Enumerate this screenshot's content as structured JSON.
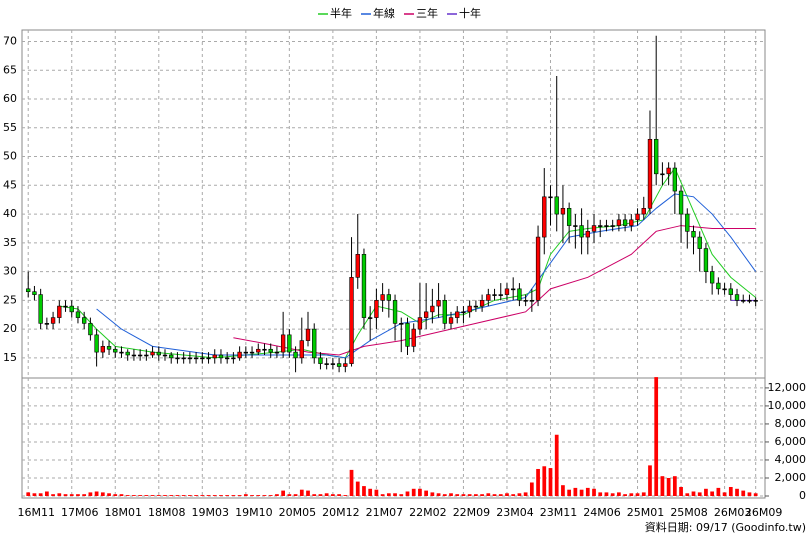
{
  "chart_data": {
    "type": "candlestick",
    "legend": [
      "半年",
      "年線",
      "三年",
      "十年"
    ],
    "footer": "資料日期: 09/17 (Goodinfo.tw)",
    "xlim": [
      -1,
      118.5
    ],
    "xticks": [
      {
        "value": 0,
        "label": "16M11"
      },
      {
        "value": 7,
        "label": "17M06"
      },
      {
        "value": 14,
        "label": "18M01"
      },
      {
        "value": 21,
        "label": "18M08"
      },
      {
        "value": 28,
        "label": "19M03"
      },
      {
        "value": 35,
        "label": "19M10"
      },
      {
        "value": 42,
        "label": "20M05"
      },
      {
        "value": 49,
        "label": "20M12"
      },
      {
        "value": 56,
        "label": "21M07"
      },
      {
        "value": 63,
        "label": "22M02"
      },
      {
        "value": 70,
        "label": "22M09"
      },
      {
        "value": 77,
        "label": "23M04"
      },
      {
        "value": 84,
        "label": "23M11"
      },
      {
        "value": 91,
        "label": "24M06"
      },
      {
        "value": 98,
        "label": "25M01"
      },
      {
        "value": 105,
        "label": "25M08"
      },
      {
        "value": 112,
        "label": "26M03"
      },
      {
        "value": 117,
        "label": "26M09"
      }
    ],
    "ylim": [
      11.5,
      72
    ],
    "yticks": [
      15,
      20,
      25,
      30,
      35,
      40,
      45,
      50,
      55,
      60,
      65,
      70
    ],
    "y2lim": [
      0,
      13100
    ],
    "y2ticks": [
      0,
      {
        "value": 2000,
        "label": "2,000"
      },
      {
        "value": 4000,
        "label": "4,000"
      },
      {
        "value": 6000,
        "label": "6,000"
      },
      {
        "value": 8000,
        "label": "8,000"
      },
      {
        "value": 10000,
        "label": "10,000"
      },
      {
        "value": 12000,
        "label": "12,000"
      }
    ],
    "up_color": "#ff0000",
    "down_color": "#00cc00",
    "volume_color": "#ff0000",
    "grid": true,
    "open": [
      27,
      26.5,
      26,
      21,
      21,
      22,
      24,
      24,
      23,
      22,
      21,
      19,
      16,
      17,
      16.5,
      16,
      16,
      15.5,
      15.5,
      15.5,
      15.5,
      16,
      15.5,
      15.5,
      15,
      15,
      15,
      15,
      15,
      15,
      15,
      15.5,
      15,
      15,
      15,
      16,
      16,
      16,
      16.5,
      16.5,
      16,
      16,
      19,
      16,
      15,
      18,
      20,
      15,
      14,
      14,
      14,
      13.5,
      14,
      29,
      33,
      22,
      22,
      25,
      26,
      25,
      21,
      21,
      17,
      20,
      22,
      23,
      24,
      25,
      21,
      22,
      23,
      23,
      24,
      24,
      25,
      26,
      26,
      26,
      27,
      27,
      25,
      25,
      25,
      36,
      43,
      43,
      40,
      41,
      38,
      38,
      36,
      37,
      38,
      38,
      38,
      38,
      39,
      38,
      39,
      40,
      41,
      53,
      47,
      47,
      48,
      44,
      40,
      37,
      36,
      34,
      30,
      28,
      27,
      27,
      26,
      25,
      25,
      25
    ],
    "high": [
      30,
      27.5,
      27,
      22,
      23,
      25,
      25,
      25,
      24,
      23,
      22,
      20,
      18,
      18,
      17,
      17,
      16.5,
      16.5,
      16.5,
      16.5,
      17,
      17,
      16.5,
      16,
      16,
      16,
      16,
      16,
      16,
      16,
      16.5,
      16.5,
      16,
      16,
      17,
      17,
      17,
      17.5,
      17.5,
      17.5,
      17,
      23,
      20,
      17,
      22,
      23,
      21,
      16,
      15,
      15,
      15,
      15,
      36,
      40,
      34,
      24,
      27,
      28,
      27,
      26,
      22,
      22,
      21,
      28,
      28,
      27,
      28,
      26,
      23,
      24,
      24,
      25,
      25,
      26,
      27,
      27,
      28,
      28,
      29,
      28,
      26,
      27,
      38,
      48,
      45,
      64,
      45,
      42,
      40,
      41,
      39,
      40,
      39,
      39,
      39,
      40,
      40,
      40,
      41,
      43,
      58,
      71,
      49,
      49,
      49,
      45,
      41,
      38,
      37,
      35,
      31,
      29,
      28,
      28,
      27,
      26,
      26,
      25.5
    ],
    "low": [
      25.5,
      25,
      20,
      20,
      20,
      21,
      23,
      22,
      21,
      20,
      18,
      13.5,
      15,
      15.5,
      15,
      15,
      14.5,
      14.5,
      14.5,
      14.5,
      15,
      14.5,
      14.5,
      14,
      14,
      14,
      14,
      14,
      14,
      14,
      14,
      14,
      14,
      14,
      14.5,
      15,
      15,
      15.5,
      15.5,
      15,
      15,
      15,
      15,
      12.5,
      14,
      17,
      14,
      13,
      13,
      13,
      12.5,
      12.5,
      13.5,
      27,
      20,
      18,
      20,
      23,
      22,
      18,
      16,
      15.5,
      16,
      19,
      20,
      21,
      22,
      20,
      20,
      21,
      21,
      22,
      23,
      23,
      24,
      25,
      25,
      25,
      25,
      24,
      24,
      23,
      24,
      33,
      38,
      37,
      35,
      35,
      34,
      33,
      33,
      35,
      36,
      37,
      37,
      37,
      37,
      37,
      38,
      39,
      40,
      45,
      45,
      45,
      40,
      35,
      34,
      33,
      30,
      28,
      26,
      26,
      26,
      25,
      24,
      24.5,
      24.5,
      24
    ],
    "close": [
      26.5,
      26,
      21,
      21,
      22,
      24,
      24,
      23,
      22,
      21,
      19,
      16,
      17,
      16.5,
      16,
      16,
      15.5,
      15.5,
      15.5,
      15.5,
      16,
      15.5,
      15.5,
      15,
      15,
      15,
      15,
      15,
      15,
      15,
      15.5,
      15,
      15,
      15,
      16,
      16,
      16,
      16.5,
      16.5,
      16,
      16,
      19,
      16,
      15,
      18,
      20,
      15,
      14,
      14,
      14,
      13.5,
      14,
      29,
      33,
      22,
      22,
      25,
      26,
      25,
      21,
      21,
      17,
      20,
      22,
      23,
      24,
      25,
      21,
      22,
      23,
      23,
      24,
      24,
      25,
      26,
      26,
      26,
      27,
      27,
      25,
      25,
      25,
      36,
      43,
      43,
      40,
      41,
      38,
      38,
      36,
      37,
      38,
      38,
      38,
      38,
      39,
      38,
      39,
      40,
      41,
      53,
      47,
      47,
      48,
      44,
      40,
      37,
      36,
      34,
      30,
      28,
      27,
      27,
      26,
      25,
      25,
      25,
      25
    ],
    "volume": [
      400,
      300,
      300,
      500,
      200,
      300,
      200,
      200,
      200,
      200,
      400,
      500,
      400,
      300,
      200,
      200,
      100,
      100,
      100,
      100,
      100,
      100,
      100,
      100,
      100,
      100,
      100,
      100,
      100,
      100,
      100,
      100,
      100,
      100,
      100,
      200,
      100,
      100,
      100,
      100,
      200,
      600,
      200,
      200,
      700,
      600,
      200,
      200,
      300,
      200,
      200,
      100,
      2900,
      1600,
      1100,
      800,
      700,
      200,
      300,
      300,
      200,
      500,
      800,
      800,
      600,
      400,
      300,
      200,
      300,
      200,
      200,
      200,
      200,
      200,
      300,
      200,
      200,
      300,
      200,
      300,
      400,
      1500,
      3000,
      3300,
      3100,
      6800,
      1200,
      700,
      900,
      700,
      900,
      800,
      400,
      400,
      300,
      400,
      200,
      300,
      300,
      400,
      3400,
      13200,
      2200,
      2000,
      2200,
      1000,
      300,
      500,
      400,
      800,
      500,
      900,
      400,
      1000,
      800,
      600,
      400,
      300
    ],
    "series": [
      {
        "name": "半年",
        "color": "#22cc22",
        "x": [
          5,
          8,
          11,
          14,
          20,
          30,
          40,
          44,
          48,
          51,
          53,
          56,
          60,
          63,
          66,
          70,
          75,
          80,
          82,
          84,
          87,
          90,
          95,
          99,
          100,
          102,
          104,
          106,
          108,
          110,
          113,
          117
        ],
        "values": [
          24,
          23.5,
          20,
          17,
          16,
          15,
          16,
          16.5,
          15.5,
          15,
          19,
          24,
          23,
          21,
          22.5,
          22.5,
          25,
          26,
          27,
          33,
          37,
          37.5,
          38,
          39,
          41,
          45,
          48,
          43,
          38,
          33,
          29,
          25.5
        ]
      },
      {
        "name": "年線",
        "color": "#2060d8",
        "x": [
          11,
          15,
          20,
          30,
          40,
          48,
          51,
          55,
          60,
          66,
          72,
          80,
          83,
          87,
          92,
          98,
          101,
          104,
          107,
          110,
          113,
          117
        ],
        "values": [
          23.5,
          20,
          17,
          15.5,
          15.5,
          15.5,
          15,
          18,
          21,
          22,
          23.5,
          25.5,
          30,
          36,
          37,
          38,
          41,
          43.5,
          43,
          40,
          36,
          30
        ]
      },
      {
        "name": "三年",
        "color": "#cc0066",
        "x": [
          33,
          38,
          45,
          50,
          54,
          60,
          70,
          80,
          84,
          90,
          97,
          101,
          105,
          110,
          117
        ],
        "values": [
          18.5,
          17.5,
          16,
          15.5,
          17,
          18,
          20.5,
          23,
          27,
          29,
          33,
          37,
          38,
          37.5,
          37.5
        ]
      },
      {
        "name": "十年",
        "color": "#6633cc",
        "x": [
          113,
          117
        ],
        "values": [
          25,
          25
        ]
      }
    ]
  }
}
